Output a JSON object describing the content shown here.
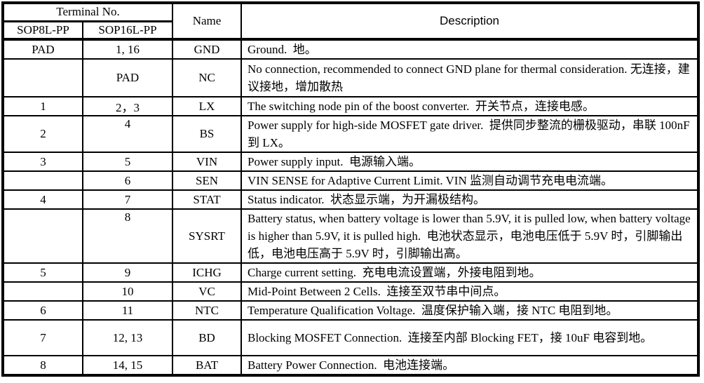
{
  "table": {
    "header": {
      "terminal_no": "Terminal No.",
      "col_sop8": "SOP8L-PP",
      "col_sop16": "SOP16L-PP",
      "name": "Name",
      "description": "Description"
    },
    "rows": [
      {
        "sop8": "PAD",
        "sop16": "1, 16",
        "name": "GND",
        "description": "Ground.  地。"
      },
      {
        "sop8": "",
        "sop16": "PAD",
        "name": "NC",
        "description": "No connection, recommended to connect GND plane for thermal consideration. 无连接，建议接地，增加散热"
      },
      {
        "sop8": "1",
        "sop16": "2，3",
        "name": "LX",
        "description": "The switching node pin of the boost converter.  开关节点，连接电感。"
      },
      {
        "sop8": "2",
        "sop16": "4",
        "name": "BS",
        "description": "Power supply for high-side MOSFET gate driver.  提供同步整流的栅极驱动，串联 100nF 到 LX。"
      },
      {
        "sop8": "3",
        "sop16": "5",
        "name": "VIN",
        "description": "Power supply input.  电源输入端。"
      },
      {
        "sop8": "",
        "sop16": "6",
        "name": "SEN",
        "description": "VIN SENSE for Adaptive Current Limit. VIN 监测自动调节充电电流端。"
      },
      {
        "sop8": "4",
        "sop16": "7",
        "name": "STAT",
        "description": "Status indicator.  状态显示端，为开漏极结构。"
      },
      {
        "sop8": "",
        "sop16": "8",
        "name": "SYSRT",
        "description": "Battery status, when battery voltage is lower than 5.9V, it is pulled low, when battery voltage is higher than 5.9V, it is pulled high.  电池状态显示，电池电压低于 5.9V 时，引脚输出低，电池电压高于 5.9V 时，引脚输出高。"
      },
      {
        "sop8": "5",
        "sop16": "9",
        "name": "ICHG",
        "description": "Charge current setting.  充电电流设置端，外接电阻到地。"
      },
      {
        "sop8": "",
        "sop16": "10",
        "name": "VC",
        "description": "Mid-Point Between 2 Cells.  连接至双节串中间点。"
      },
      {
        "sop8": "6",
        "sop16": "11",
        "name": "NTC",
        "description": "Temperature Qualification Voltage.  温度保护输入端，接 NTC 电阻到地。"
      },
      {
        "sop8": "7",
        "sop16": "12, 13",
        "name": "BD",
        "description": "Blocking MOSFET Connection.  连接至内部 Blocking FET，接 10uF 电容到地。"
      },
      {
        "sop8": "8",
        "sop16": "14, 15",
        "name": "BAT",
        "description": "Battery Power Connection.  电池连接端。"
      }
    ]
  }
}
